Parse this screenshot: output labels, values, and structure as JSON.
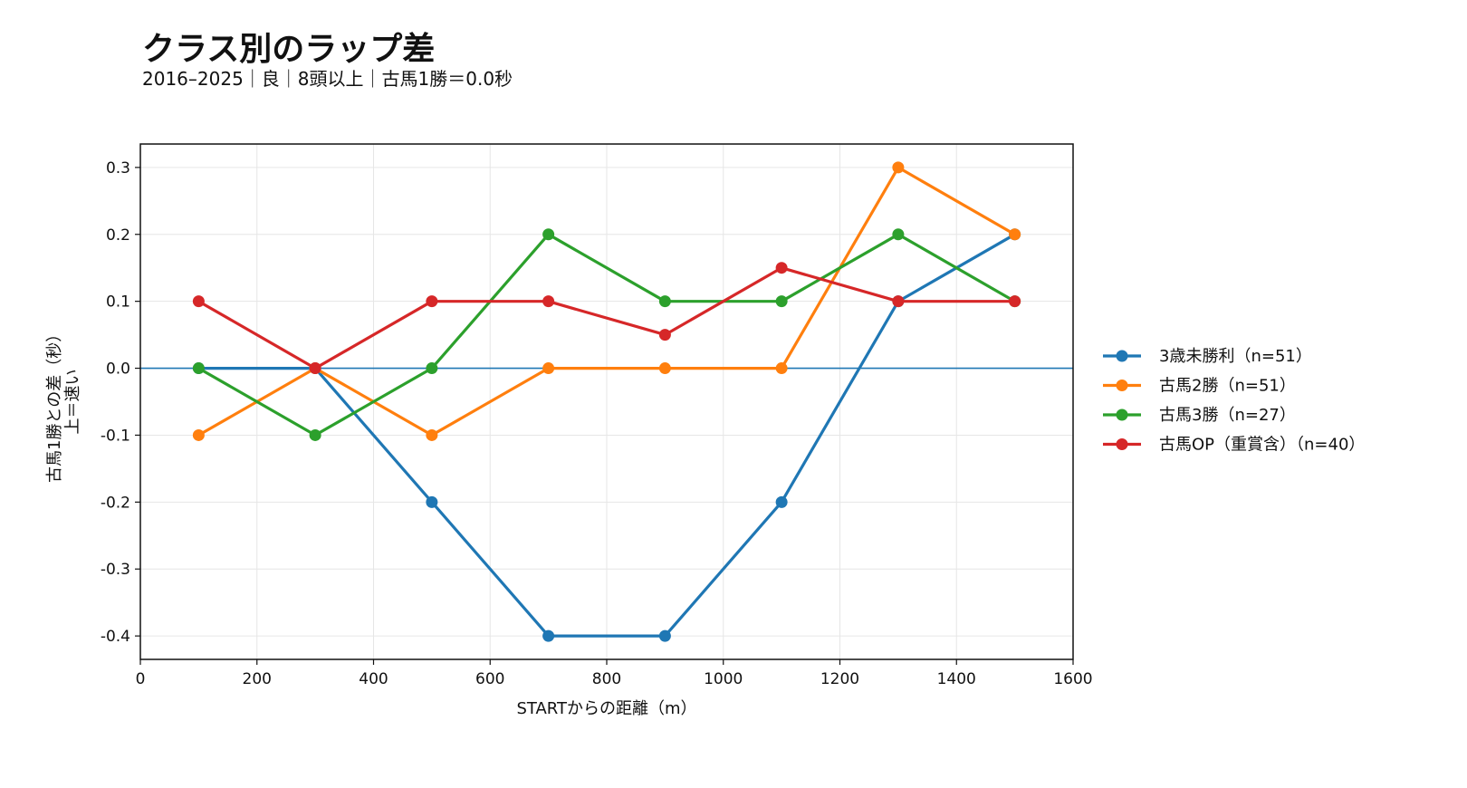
{
  "chart_data": {
    "type": "line",
    "title": "クラス別のラップ差",
    "subtitle": "2016–2025｜良｜8頭以上｜古馬1勝＝0.0秒",
    "xlabel": "STARTからの距離（m）",
    "ylabel": [
      "古馬1勝との差（秒）",
      "上＝速い"
    ],
    "xlim": [
      0,
      1600
    ],
    "ylim": [
      -0.435,
      0.335
    ],
    "xticks": [
      0,
      200,
      400,
      600,
      800,
      1000,
      1200,
      1400,
      1600
    ],
    "yticks": [
      0.3,
      0.2,
      0.1,
      0.0,
      -0.1,
      -0.2,
      -0.3,
      -0.4
    ],
    "ytick_labels": [
      "0.3",
      "0.2",
      "0.1",
      "0.0",
      "-0.1",
      "-0.2",
      "-0.3",
      "-0.4"
    ],
    "grid": true,
    "reference_line": {
      "y": 0.0,
      "color": "#1f77b4"
    },
    "legend_position": "right",
    "x": [
      100,
      300,
      500,
      700,
      900,
      1100,
      1300,
      1500
    ],
    "series": [
      {
        "name": "3歳未勝利（n=51）",
        "color": "#1f77b4",
        "values": [
          0.0,
          0.0,
          -0.2,
          -0.4,
          -0.4,
          -0.2,
          0.1,
          0.2
        ]
      },
      {
        "name": "古馬2勝（n=51）",
        "color": "#ff7f0e",
        "values": [
          -0.1,
          0.0,
          -0.1,
          0.0,
          0.0,
          0.0,
          0.3,
          0.2
        ]
      },
      {
        "name": "古馬3勝（n=27）",
        "color": "#2ca02c",
        "values": [
          0.0,
          -0.1,
          0.0,
          0.2,
          0.1,
          0.1,
          0.2,
          0.1
        ]
      },
      {
        "name": "古馬OP（重賞含）（n=40）",
        "color": "#d62728",
        "values": [
          0.1,
          0.0,
          0.1,
          0.1,
          0.05,
          0.15,
          0.1,
          0.1
        ]
      }
    ]
  }
}
